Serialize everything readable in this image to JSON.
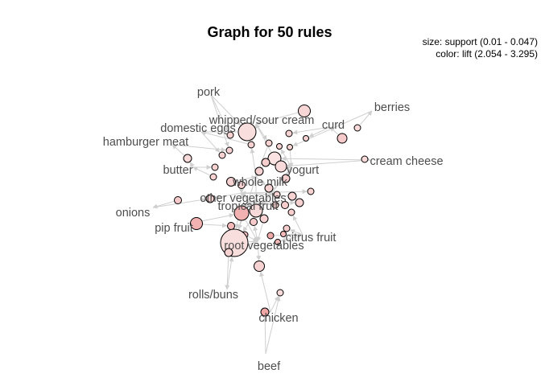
{
  "title": "Graph for 50 rules",
  "legend": {
    "size_line": "size: support (0.01 - 0.047)",
    "color_line": "color: lift (2.054 - 3.295)"
  },
  "colors": {
    "node_low_lift": "#fbeaea",
    "node_high_lift": "#ef9a9a",
    "edge": "#cfcfcf",
    "label": "#4d4d4d"
  },
  "items": [
    "pork",
    "whipped/sour cream",
    "curd",
    "berries",
    "domestic eggs",
    "hamburger meat",
    "cream cheese",
    "butter",
    "yogurt",
    "whole milk",
    "other vegetables",
    "onions",
    "tropical fruit",
    "pip fruit",
    "citrus fruit",
    "root vegetables",
    "rolls/buns",
    "chicken",
    "beef"
  ]
}
